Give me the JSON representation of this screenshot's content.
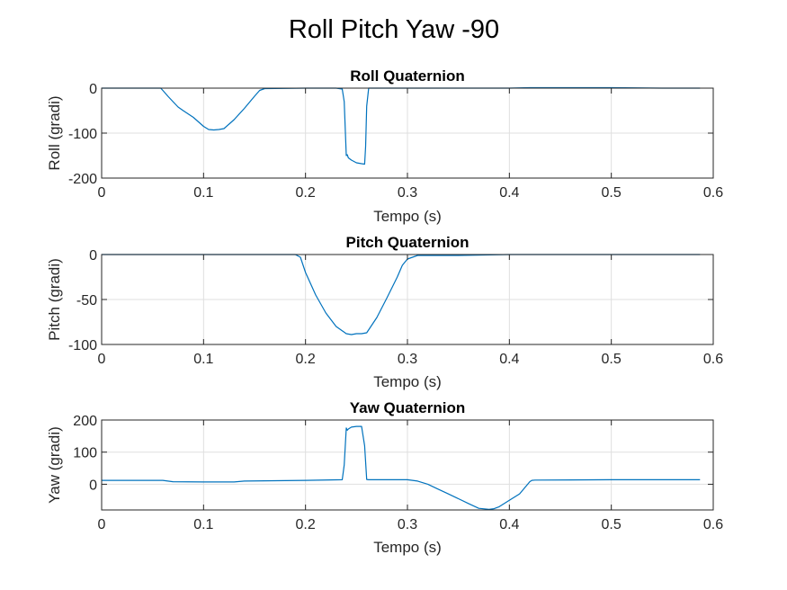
{
  "figure_title": "Roll Pitch Yaw -90",
  "chart_data": [
    {
      "type": "line",
      "title": "Roll Quaternion",
      "xlabel": "Tempo (s)",
      "ylabel": "Roll (gradi)",
      "xlim": [
        0,
        0.6
      ],
      "ylim": [
        -200,
        0
      ],
      "x_ticks": [
        0,
        0.1,
        0.2,
        0.3,
        0.4,
        0.5,
        0.6
      ],
      "x_tick_labels": [
        "0",
        "0.1",
        "0.2",
        "0.3",
        "0.4",
        "0.5",
        "0.6"
      ],
      "y_ticks": [
        -200,
        -100,
        0
      ],
      "y_tick_labels": [
        "-200",
        "-100",
        "0"
      ],
      "grid": true,
      "series": [
        {
          "color": "#0072BD",
          "x": [
            0,
            0.02,
            0.04,
            0.058,
            0.06,
            0.065,
            0.07,
            0.075,
            0.08,
            0.09,
            0.1,
            0.105,
            0.11,
            0.115,
            0.12,
            0.125,
            0.13,
            0.14,
            0.15,
            0.155,
            0.16,
            0.2,
            0.23,
            0.236,
            0.238,
            0.24,
            0.241,
            0.242,
            0.245,
            0.25,
            0.255,
            0.258,
            0.259,
            0.26,
            0.262,
            0.3,
            0.35,
            0.4,
            0.42,
            0.45,
            0.5,
            0.55,
            0.587
          ],
          "y": [
            0,
            0,
            0,
            0,
            -5,
            -18,
            -30,
            -42,
            -50,
            -65,
            -85,
            -92,
            -93,
            -92,
            -90,
            -80,
            -70,
            -45,
            -18,
            -5,
            -1,
            0,
            0,
            -2,
            -30,
            -150,
            -148,
            -155,
            -160,
            -166,
            -168,
            -169,
            -130,
            -40,
            0,
            0,
            0,
            0,
            1,
            1,
            1,
            0,
            0
          ]
        }
      ]
    },
    {
      "type": "line",
      "title": "Pitch Quaternion",
      "xlabel": "Tempo (s)",
      "ylabel": "Pitch (gradi)",
      "xlim": [
        0,
        0.6
      ],
      "ylim": [
        -100,
        0
      ],
      "x_ticks": [
        0,
        0.1,
        0.2,
        0.3,
        0.4,
        0.5,
        0.6
      ],
      "x_tick_labels": [
        "0",
        "0.1",
        "0.2",
        "0.3",
        "0.4",
        "0.5",
        "0.6"
      ],
      "y_ticks": [
        -100,
        -50,
        0
      ],
      "y_tick_labels": [
        "-100",
        "-50",
        "0"
      ],
      "grid": true,
      "series": [
        {
          "color": "#0072BD",
          "x": [
            0,
            0.05,
            0.1,
            0.15,
            0.19,
            0.195,
            0.2,
            0.21,
            0.22,
            0.23,
            0.24,
            0.245,
            0.25,
            0.255,
            0.26,
            0.27,
            0.28,
            0.29,
            0.295,
            0.3,
            0.31,
            0.35,
            0.4,
            0.45,
            0.5,
            0.55,
            0.587
          ],
          "y": [
            0,
            0,
            0,
            0,
            0,
            -3,
            -20,
            -45,
            -65,
            -80,
            -88,
            -89,
            -88,
            -88,
            -87,
            -70,
            -48,
            -25,
            -12,
            -5,
            -1,
            -1,
            0,
            0,
            0,
            0,
            0
          ]
        }
      ]
    },
    {
      "type": "line",
      "title": "Yaw Quaternion",
      "xlabel": "Tempo (s)",
      "ylabel": "Yaw (gradi)",
      "xlim": [
        0,
        0.6
      ],
      "ylim": [
        -80,
        200
      ],
      "x_ticks": [
        0,
        0.1,
        0.2,
        0.3,
        0.4,
        0.5,
        0.6
      ],
      "x_tick_labels": [
        "0",
        "0.1",
        "0.2",
        "0.3",
        "0.4",
        "0.5",
        "0.6"
      ],
      "y_ticks": [
        0,
        100,
        200
      ],
      "y_tick_labels": [
        "0",
        "100",
        "200"
      ],
      "grid": true,
      "series": [
        {
          "color": "#0072BD",
          "x": [
            0,
            0.03,
            0.06,
            0.07,
            0.1,
            0.13,
            0.14,
            0.2,
            0.236,
            0.238,
            0.24,
            0.241,
            0.242,
            0.245,
            0.25,
            0.255,
            0.258,
            0.26,
            0.262,
            0.3,
            0.31,
            0.32,
            0.33,
            0.34,
            0.35,
            0.36,
            0.37,
            0.38,
            0.385,
            0.39,
            0.4,
            0.41,
            0.42,
            0.422,
            0.425,
            0.5,
            0.55,
            0.587
          ],
          "y": [
            12,
            12,
            12,
            8,
            7,
            7,
            10,
            12,
            14,
            60,
            175,
            168,
            172,
            178,
            180,
            180,
            120,
            15,
            14,
            14,
            10,
            0,
            -15,
            -30,
            -45,
            -60,
            -75,
            -78,
            -76,
            -70,
            -50,
            -30,
            8,
            12,
            13,
            14,
            14,
            14
          ]
        }
      ]
    }
  ]
}
